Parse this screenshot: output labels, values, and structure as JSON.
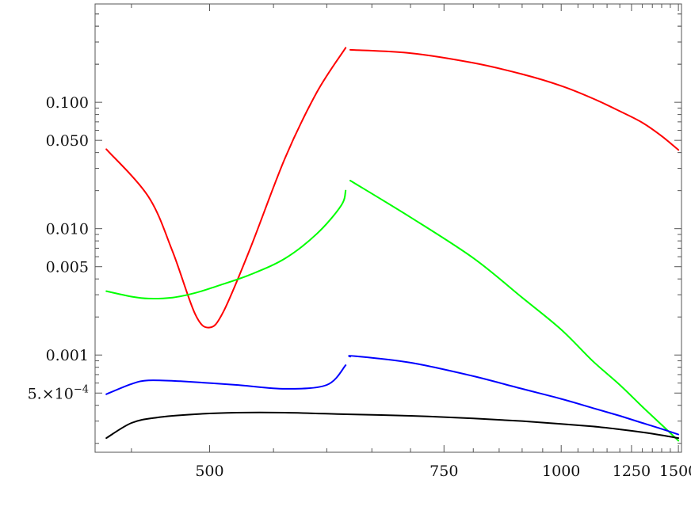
{
  "chart_data": {
    "type": "line",
    "title": "",
    "xlabel": "",
    "ylabel": "",
    "x_scale": "reciprocal",
    "xlim": [
      430,
      1520
    ],
    "y_scale": "log",
    "ylim": [
      0.00017,
      0.6
    ],
    "grid": false,
    "x_ticks": [
      {
        "value": 500,
        "label": "500"
      },
      {
        "value": 750,
        "label": "750"
      },
      {
        "value": 1000,
        "label": "1000"
      },
      {
        "value": 1250,
        "label": "1250"
      },
      {
        "value": 1500,
        "label": "1500"
      }
    ],
    "y_ticks": [
      {
        "value": 0.1,
        "label": "0.100"
      },
      {
        "value": 0.05,
        "label": "0.050"
      },
      {
        "value": 0.01,
        "label": "0.010"
      },
      {
        "value": 0.005,
        "label": "0.005"
      },
      {
        "value": 0.001,
        "label": "0.001"
      },
      {
        "value": 0.0005,
        "label": "5.×10",
        "exp": "−4"
      }
    ],
    "series": [
      {
        "color": "#ff0000",
        "segments": [
          {
            "x": [
              436,
              460,
              475,
              490,
              500,
              510,
              530,
              560,
              590,
              620
            ],
            "y": [
              0.0425,
              0.0179,
              0.0066,
              0.0021,
              0.00165,
              0.0022,
              0.0067,
              0.036,
              0.12,
              0.27
            ]
          },
          {
            "x": [
              625,
              700,
              800,
              900,
              1000,
              1100,
              1200,
              1300,
              1400,
              1500
            ],
            "y": [
              0.26,
              0.245,
              0.205,
              0.167,
              0.135,
              0.107,
              0.085,
              0.069,
              0.054,
              0.042
            ]
          }
        ]
      },
      {
        "color": "#00ff00",
        "segments": [
          {
            "x": [
              436,
              450,
              460,
              475,
              490,
              505,
              530,
              560,
              590,
              615,
              620
            ],
            "y": [
              0.0032,
              0.0029,
              0.0028,
              0.00285,
              0.0031,
              0.0035,
              0.0043,
              0.0058,
              0.0091,
              0.0152,
              0.02
            ]
          },
          {
            "x": [
              625,
              700,
              800,
              900,
              1000,
              1100,
              1200,
              1300,
              1400,
              1500
            ],
            "y": [
              0.024,
              0.0123,
              0.00585,
              0.00285,
              0.00159,
              0.00089,
              0.00058,
              0.00039,
              0.00028,
              0.00021
            ]
          }
        ]
      },
      {
        "color": "#0000ff",
        "segments": [
          {
            "x": [
              436,
              450,
              460,
              480,
              520,
              560,
              600,
              620
            ],
            "y": [
              0.00049,
              0.00059,
              0.00063,
              0.00062,
              0.00058,
              0.00054,
              0.00058,
              0.00083
            ]
          },
          {
            "x": [
              625,
              630,
              700,
              800,
              900,
              1000,
              1100,
              1200,
              1300,
              1400,
              1500
            ],
            "y": [
              0.00097,
              0.00098,
              0.00087,
              0.00068,
              0.00054,
              0.00045,
              0.00038,
              0.00033,
              0.00029,
              0.00026,
              0.000235
            ]
          }
        ]
      },
      {
        "color": "#000000",
        "segments": [
          {
            "x": [
              436,
              450,
              465,
              490,
              520,
              560,
              620,
              700,
              800,
              900,
              1000,
              1100,
              1200,
              1300,
              1400,
              1500
            ],
            "y": [
              0.00022,
              0.00029,
              0.00032,
              0.00034,
              0.00035,
              0.00035,
              0.00034,
              0.00033,
              0.000315,
              0.0003,
              0.000285,
              0.000272,
              0.000258,
              0.000245,
              0.000232,
              0.00022
            ]
          }
        ]
      }
    ]
  }
}
